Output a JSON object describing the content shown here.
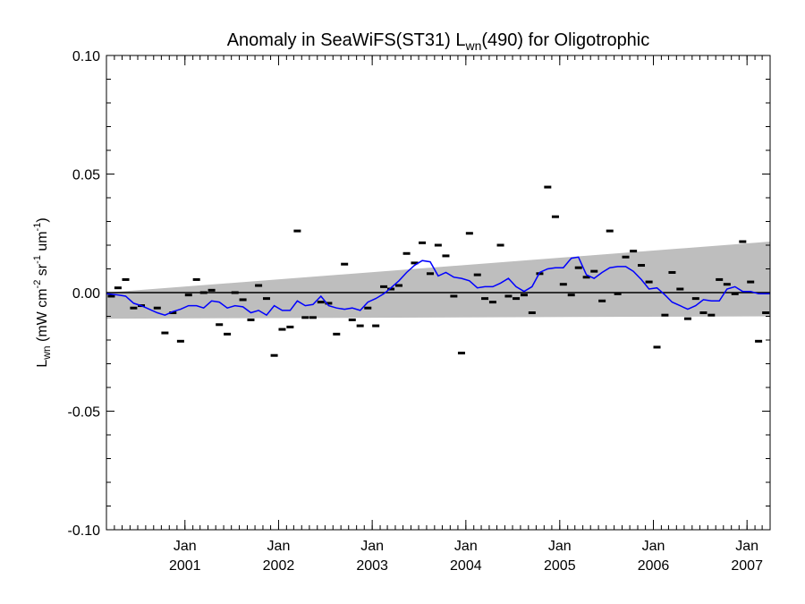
{
  "chart_data": {
    "type": "scatter",
    "title": {
      "prefix": "Anomaly in SeaWiFS(ST31) L",
      "sub": "wn",
      "suffix": "(490) for Oligotrophic"
    },
    "ylabel": {
      "L": "L",
      "L_sub": "wn",
      "unit_open": " (mW cm",
      "exp1": "-2",
      "sr": " sr",
      "exp2": "-1",
      "um": " um",
      "exp3": "-1",
      "close": ")"
    },
    "ylim": [
      -0.1,
      0.1
    ],
    "yticks": [
      -0.1,
      -0.05,
      0.0,
      0.05,
      0.1
    ],
    "ytick_labels": [
      "-0.10",
      "-0.05",
      "0.00",
      "0.05",
      "0.10"
    ],
    "xlim": [
      "2000-03-01",
      "2007-04-01"
    ],
    "xticks": [
      {
        "date": "2001-01-01",
        "month": "Jan",
        "year": "2001"
      },
      {
        "date": "2002-01-01",
        "month": "Jan",
        "year": "2002"
      },
      {
        "date": "2003-01-01",
        "month": "Jan",
        "year": "2003"
      },
      {
        "date": "2004-01-01",
        "month": "Jan",
        "year": "2004"
      },
      {
        "date": "2005-01-01",
        "month": "Jan",
        "year": "2005"
      },
      {
        "date": "2006-01-01",
        "month": "Jan",
        "year": "2006"
      },
      {
        "date": "2007-01-01",
        "month": "Jan",
        "year": "2007"
      }
    ],
    "minor_ticks": "monthly",
    "band": {
      "lower": [
        [
          "2000-03-01",
          -0.011
        ],
        [
          "2007-04-01",
          -0.01
        ]
      ],
      "upper": [
        [
          "2000-03-01",
          0.0
        ],
        [
          "2007-04-01",
          0.0215
        ]
      ],
      "color": "#bebebe"
    },
    "zero_line": 0.0,
    "series": [
      {
        "kind": "points",
        "color": "#000000",
        "points": [
          [
            "2000-03-20",
            -0.0015
          ],
          [
            "2000-04-15",
            0.002
          ],
          [
            "2000-05-15",
            0.0055
          ],
          [
            "2000-06-15",
            -0.0065
          ],
          [
            "2000-07-15",
            -0.0055
          ],
          [
            "2000-09-15",
            -0.0065
          ],
          [
            "2000-10-15",
            -0.017
          ],
          [
            "2000-11-15",
            -0.0085
          ],
          [
            "2000-12-15",
            -0.0205
          ],
          [
            "2001-01-15",
            -0.001
          ],
          [
            "2001-02-15",
            0.0055
          ],
          [
            "2001-03-15",
            0.0
          ],
          [
            "2001-04-15",
            0.001
          ],
          [
            "2001-05-15",
            -0.0135
          ],
          [
            "2001-06-15",
            -0.0175
          ],
          [
            "2001-07-15",
            0.0
          ],
          [
            "2001-08-15",
            -0.003
          ],
          [
            "2001-09-15",
            -0.0115
          ],
          [
            "2001-10-15",
            0.003
          ],
          [
            "2001-11-15",
            -0.0025
          ],
          [
            "2001-12-15",
            -0.0265
          ],
          [
            "2002-01-15",
            -0.0155
          ],
          [
            "2002-02-15",
            -0.0145
          ],
          [
            "2002-03-15",
            0.026
          ],
          [
            "2002-04-15",
            -0.0105
          ],
          [
            "2002-05-15",
            -0.0105
          ],
          [
            "2002-06-15",
            -0.004
          ],
          [
            "2002-07-15",
            -0.0045
          ],
          [
            "2002-08-15",
            -0.0175
          ],
          [
            "2002-09-15",
            0.012
          ],
          [
            "2002-10-15",
            -0.0115
          ],
          [
            "2002-11-15",
            -0.014
          ],
          [
            "2002-12-15",
            -0.0065
          ],
          [
            "2003-01-15",
            -0.014
          ],
          [
            "2003-02-15",
            0.0025
          ],
          [
            "2003-03-15",
            0.0015
          ],
          [
            "2003-04-15",
            0.003
          ],
          [
            "2003-05-15",
            0.0165
          ],
          [
            "2003-06-15",
            0.0125
          ],
          [
            "2003-07-15",
            0.021
          ],
          [
            "2003-08-15",
            0.008
          ],
          [
            "2003-09-15",
            0.02
          ],
          [
            "2003-10-15",
            0.0155
          ],
          [
            "2003-11-15",
            -0.0015
          ],
          [
            "2003-12-15",
            -0.0255
          ],
          [
            "2004-01-15",
            0.025
          ],
          [
            "2004-02-15",
            0.0075
          ],
          [
            "2004-03-15",
            -0.0025
          ],
          [
            "2004-04-15",
            -0.004
          ],
          [
            "2004-05-15",
            0.02
          ],
          [
            "2004-06-15",
            -0.0015
          ],
          [
            "2004-07-15",
            -0.0025
          ],
          [
            "2004-08-15",
            -0.001
          ],
          [
            "2004-09-15",
            -0.0085
          ],
          [
            "2004-10-15",
            0.008
          ],
          [
            "2004-11-15",
            0.0445
          ],
          [
            "2004-12-15",
            0.032
          ],
          [
            "2005-01-15",
            0.0035
          ],
          [
            "2005-02-15",
            -0.001
          ],
          [
            "2005-03-15",
            0.0105
          ],
          [
            "2005-04-15",
            0.0065
          ],
          [
            "2005-05-15",
            0.009
          ],
          [
            "2005-06-15",
            -0.0035
          ],
          [
            "2005-07-15",
            0.026
          ],
          [
            "2005-08-15",
            -0.0005
          ],
          [
            "2005-09-15",
            0.015
          ],
          [
            "2005-10-15",
            0.0175
          ],
          [
            "2005-11-15",
            0.0115
          ],
          [
            "2005-12-15",
            0.0045
          ],
          [
            "2006-01-15",
            -0.023
          ],
          [
            "2006-02-15",
            -0.0095
          ],
          [
            "2006-03-15",
            0.0085
          ],
          [
            "2006-04-15",
            0.0015
          ],
          [
            "2006-05-15",
            -0.011
          ],
          [
            "2006-06-15",
            -0.0025
          ],
          [
            "2006-07-15",
            -0.0085
          ],
          [
            "2006-08-15",
            -0.0095
          ],
          [
            "2006-09-15",
            0.0055
          ],
          [
            "2006-10-15",
            0.0035
          ],
          [
            "2006-11-15",
            -0.0005
          ],
          [
            "2006-12-15",
            0.0215
          ],
          [
            "2007-01-15",
            0.0045
          ],
          [
            "2007-02-15",
            -0.0205
          ],
          [
            "2007-03-15",
            -0.0085
          ]
        ]
      },
      {
        "kind": "line",
        "color": "#0000ff",
        "points": [
          [
            "2000-03-01",
            -0.0005
          ],
          [
            "2000-04-15",
            -0.001
          ],
          [
            "2000-05-15",
            -0.0015
          ],
          [
            "2000-06-15",
            -0.0045
          ],
          [
            "2000-07-15",
            -0.0055
          ],
          [
            "2000-08-15",
            -0.007
          ],
          [
            "2000-09-15",
            -0.0085
          ],
          [
            "2000-10-15",
            -0.0095
          ],
          [
            "2000-11-15",
            -0.008
          ],
          [
            "2000-12-15",
            -0.007
          ],
          [
            "2001-01-15",
            -0.0055
          ],
          [
            "2001-02-15",
            -0.0055
          ],
          [
            "2001-03-15",
            -0.0065
          ],
          [
            "2001-04-15",
            -0.0035
          ],
          [
            "2001-05-15",
            -0.004
          ],
          [
            "2001-06-15",
            -0.0065
          ],
          [
            "2001-07-15",
            -0.0055
          ],
          [
            "2001-08-15",
            -0.006
          ],
          [
            "2001-09-15",
            -0.0085
          ],
          [
            "2001-10-15",
            -0.0075
          ],
          [
            "2001-11-15",
            -0.0095
          ],
          [
            "2001-12-15",
            -0.0055
          ],
          [
            "2002-01-15",
            -0.0075
          ],
          [
            "2002-02-15",
            -0.0075
          ],
          [
            "2002-03-15",
            -0.0035
          ],
          [
            "2002-04-15",
            -0.0055
          ],
          [
            "2002-05-15",
            -0.005
          ],
          [
            "2002-06-15",
            -0.0015
          ],
          [
            "2002-07-15",
            -0.0055
          ],
          [
            "2002-08-15",
            -0.0065
          ],
          [
            "2002-09-15",
            -0.007
          ],
          [
            "2002-10-15",
            -0.0065
          ],
          [
            "2002-11-15",
            -0.0075
          ],
          [
            "2002-12-15",
            -0.004
          ],
          [
            "2003-01-15",
            -0.0025
          ],
          [
            "2003-02-15",
            -0.0005
          ],
          [
            "2003-03-15",
            0.002
          ],
          [
            "2003-04-15",
            0.005
          ],
          [
            "2003-05-15",
            0.0085
          ],
          [
            "2003-06-15",
            0.0115
          ],
          [
            "2003-07-15",
            0.0135
          ],
          [
            "2003-08-15",
            0.013
          ],
          [
            "2003-09-15",
            0.007
          ],
          [
            "2003-10-15",
            0.0085
          ],
          [
            "2003-11-15",
            0.0065
          ],
          [
            "2003-12-15",
            0.006
          ],
          [
            "2004-01-15",
            0.005
          ],
          [
            "2004-02-15",
            0.002
          ],
          [
            "2004-03-15",
            0.0025
          ],
          [
            "2004-04-15",
            0.0025
          ],
          [
            "2004-05-15",
            0.004
          ],
          [
            "2004-06-15",
            0.006
          ],
          [
            "2004-07-15",
            0.0025
          ],
          [
            "2004-08-15",
            0.0005
          ],
          [
            "2004-09-15",
            0.0025
          ],
          [
            "2004-10-15",
            0.0085
          ],
          [
            "2004-11-15",
            0.01
          ],
          [
            "2004-12-15",
            0.0105
          ],
          [
            "2005-01-15",
            0.0105
          ],
          [
            "2005-02-15",
            0.0145
          ],
          [
            "2005-03-15",
            0.015
          ],
          [
            "2005-04-15",
            0.0075
          ],
          [
            "2005-05-15",
            0.006
          ],
          [
            "2005-06-15",
            0.0085
          ],
          [
            "2005-07-15",
            0.0105
          ],
          [
            "2005-08-15",
            0.011
          ],
          [
            "2005-09-15",
            0.011
          ],
          [
            "2005-10-15",
            0.009
          ],
          [
            "2005-11-15",
            0.0055
          ],
          [
            "2005-12-15",
            0.0015
          ],
          [
            "2006-01-15",
            0.002
          ],
          [
            "2006-02-15",
            -0.001
          ],
          [
            "2006-03-15",
            -0.004
          ],
          [
            "2006-04-15",
            -0.0055
          ],
          [
            "2006-05-15",
            -0.007
          ],
          [
            "2006-06-15",
            -0.0055
          ],
          [
            "2006-07-15",
            -0.003
          ],
          [
            "2006-08-15",
            -0.0035
          ],
          [
            "2006-09-15",
            -0.0035
          ],
          [
            "2006-10-15",
            0.0015
          ],
          [
            "2006-11-15",
            0.0025
          ],
          [
            "2006-12-15",
            0.0005
          ],
          [
            "2007-01-15",
            0.0005
          ],
          [
            "2007-02-15",
            -0.0005
          ],
          [
            "2007-03-15",
            -0.0005
          ],
          [
            "2007-04-01",
            -0.0005
          ]
        ]
      }
    ]
  }
}
